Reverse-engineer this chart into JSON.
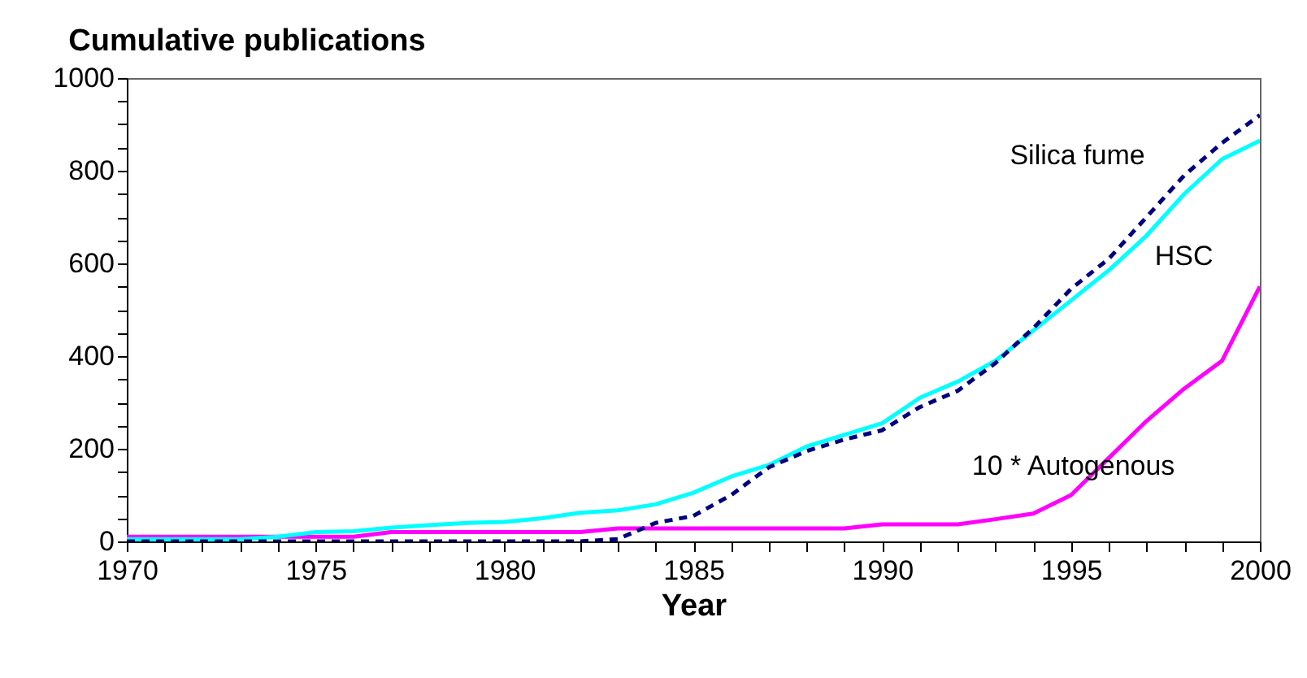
{
  "chart_data": {
    "type": "line",
    "title": "Cumulative publications",
    "xlabel": "Year",
    "x": [
      1970,
      1971,
      1972,
      1973,
      1974,
      1975,
      1976,
      1977,
      1978,
      1979,
      1980,
      1981,
      1982,
      1983,
      1984,
      1985,
      1986,
      1987,
      1988,
      1989,
      1990,
      1991,
      1992,
      1993,
      1994,
      1995,
      1996,
      1997,
      1998,
      1999,
      2000
    ],
    "series": [
      {
        "name": "Silica fume",
        "color": "#000080",
        "line_style": "dashed",
        "values": [
          0,
          0,
          0,
          0,
          0,
          0,
          0,
          0,
          0,
          0,
          0,
          0,
          0,
          5,
          40,
          55,
          100,
          160,
          195,
          220,
          240,
          290,
          325,
          385,
          460,
          545,
          610,
          700,
          790,
          860,
          920
        ]
      },
      {
        "name": "HSC",
        "color": "#00ffff",
        "line_style": "solid",
        "values": [
          5,
          5,
          5,
          5,
          10,
          20,
          22,
          30,
          35,
          40,
          42,
          50,
          62,
          67,
          80,
          105,
          140,
          165,
          205,
          230,
          255,
          310,
          345,
          390,
          455,
          520,
          585,
          660,
          750,
          825,
          865
        ]
      },
      {
        "name": "10 * Autogenous",
        "color": "#ff00ff",
        "line_style": "solid",
        "values": [
          10,
          10,
          10,
          10,
          10,
          10,
          10,
          20,
          20,
          20,
          20,
          20,
          20,
          28,
          28,
          28,
          28,
          28,
          28,
          28,
          37,
          37,
          37,
          48,
          60,
          100,
          180,
          260,
          330,
          390,
          550
        ]
      }
    ],
    "xlim": [
      1970,
      2000
    ],
    "xticks": [
      1970,
      {
        "value": 1971,
        "label": null
      },
      {
        "value": 1972,
        "label": null
      },
      {
        "value": 1973,
        "label": null
      },
      {
        "value": 1974,
        "label": null
      },
      1975,
      {
        "value": 1976,
        "label": null
      },
      {
        "value": 1977,
        "label": null
      },
      {
        "value": 1978,
        "label": null
      },
      {
        "value": 1979,
        "label": null
      },
      1980,
      {
        "value": 1981,
        "label": null
      },
      {
        "value": 1982,
        "label": null
      },
      {
        "value": 1983,
        "label": null
      },
      {
        "value": 1984,
        "label": null
      },
      1985,
      {
        "value": 1986,
        "label": null
      },
      {
        "value": 1987,
        "label": null
      },
      {
        "value": 1988,
        "label": null
      },
      {
        "value": 1989,
        "label": null
      },
      1990,
      {
        "value": 1991,
        "label": null
      },
      {
        "value": 1992,
        "label": null
      },
      {
        "value": 1993,
        "label": null
      },
      {
        "value": 1994,
        "label": null
      },
      1995,
      {
        "value": 1996,
        "label": null
      },
      {
        "value": 1997,
        "label": null
      },
      {
        "value": 1998,
        "label": null
      },
      {
        "value": 1999,
        "label": null
      },
      2000
    ],
    "ylim": [
      0,
      1000
    ],
    "yticks": [
      0,
      {
        "value": 50,
        "label": null
      },
      {
        "value": 100,
        "label": null
      },
      {
        "value": 150,
        "label": null
      },
      200,
      {
        "value": 250,
        "label": null
      },
      {
        "value": 300,
        "label": null
      },
      {
        "value": 350,
        "label": null
      },
      400,
      {
        "value": 450,
        "label": null
      },
      {
        "value": 500,
        "label": null
      },
      {
        "value": 550,
        "label": null
      },
      600,
      {
        "value": 650,
        "label": null
      },
      {
        "value": 700,
        "label": null
      },
      {
        "value": 750,
        "label": null
      },
      800,
      {
        "value": 850,
        "label": null
      },
      {
        "value": 900,
        "label": null
      },
      {
        "value": 950,
        "label": null
      },
      1000
    ],
    "grid": false
  }
}
